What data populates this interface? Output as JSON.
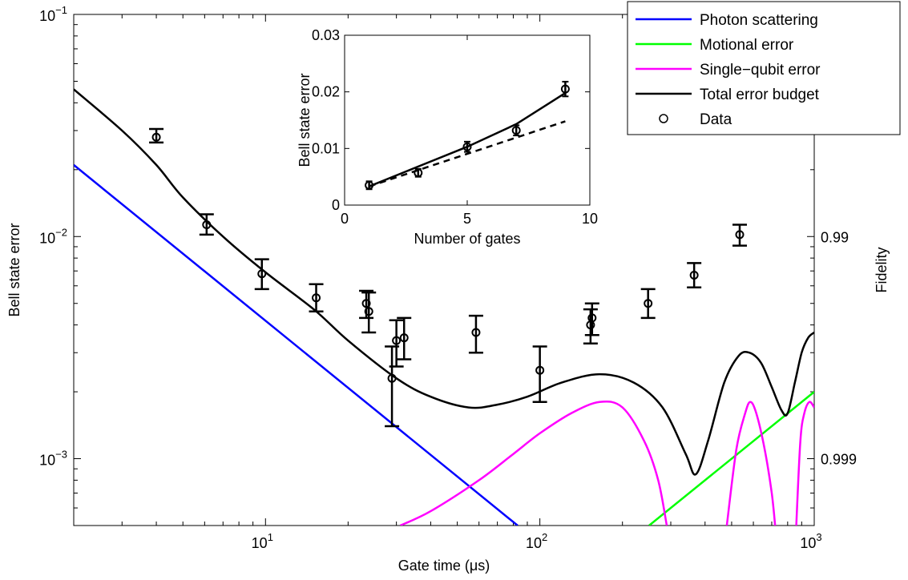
{
  "chart_data": [
    {
      "type": "line",
      "xlabel": "Gate time (μs)",
      "ylabel": "Bell state error",
      "ylabel_right": "Fidelity",
      "xscale": "log",
      "yscale": "log",
      "xlim": [
        2,
        1000
      ],
      "ylim": [
        0.0005,
        0.1
      ],
      "x_ticks": [
        10,
        100,
        1000
      ],
      "x_tick_labels": [
        {
          "base": "10",
          "exp": "1"
        },
        {
          "base": "10",
          "exp": "2"
        },
        {
          "base": "10",
          "exp": "3"
        }
      ],
      "y_ticks": [
        0.001,
        0.01,
        0.1
      ],
      "y_tick_labels": [
        {
          "base": "10",
          "exp": "−3"
        },
        {
          "base": "10",
          "exp": "−2"
        },
        {
          "base": "10",
          "exp": "−1"
        }
      ],
      "right_ticks": [
        {
          "error": 0.01,
          "label": "0.99"
        },
        {
          "error": 0.001,
          "label": "0.999"
        }
      ],
      "legend_position": "top-right",
      "series": [
        {
          "name": "Photon scattering",
          "color": "#0000ff",
          "x": [
            2,
            83
          ],
          "y": [
            0.021,
            0.0005
          ]
        },
        {
          "name": "Motional error",
          "color": "#00ff00",
          "x": [
            250,
            1000
          ],
          "y": [
            0.0005,
            0.002
          ]
        },
        {
          "name": "Single−qubit error",
          "color": "#ff00ff",
          "x": [
            31,
            40,
            60,
            80,
            100,
            130,
            165,
            200,
            240,
            270,
            290,
            1000
          ],
          "y": [
            0.0005,
            0.00058,
            0.0008,
            0.00105,
            0.0013,
            0.0016,
            0.0018,
            0.0017,
            0.0012,
            0.0008,
            0.0005,
            null
          ],
          "x2": [
            480,
            520,
            560,
            585,
            615,
            660,
            700,
            720
          ],
          "y2": [
            0.0005,
            0.0011,
            0.0016,
            0.0018,
            0.0016,
            0.0011,
            0.0007,
            0.0005
          ],
          "x3": [
            860,
            890,
            920,
            960,
            1000
          ],
          "y3": [
            0.0005,
            0.0012,
            0.0016,
            0.0018,
            0.0017
          ]
        },
        {
          "name": "Total error budget",
          "color": "#000000",
          "x": [
            2,
            3,
            4,
            5,
            7,
            10,
            15,
            20,
            30,
            40,
            55,
            70,
            90,
            120,
            165,
            220,
            280,
            340,
            370,
            410,
            470,
            530,
            580,
            640,
            700,
            760,
            800,
            850,
            900,
            950,
            1000
          ],
          "y": [
            0.046,
            0.03,
            0.021,
            0.015,
            0.01,
            0.0069,
            0.0047,
            0.0034,
            0.0023,
            0.0019,
            0.0017,
            0.00175,
            0.0019,
            0.0022,
            0.0024,
            0.0022,
            0.0017,
            0.00105,
            0.00085,
            0.0012,
            0.0022,
            0.0029,
            0.003,
            0.0027,
            0.0021,
            0.00165,
            0.0016,
            0.0022,
            0.003,
            0.0035,
            0.0037
          ]
        },
        {
          "name": "Data",
          "color": "#000000",
          "marker": "circle",
          "points": [
            {
              "x": 4.0,
              "y": 0.028,
              "lo": 0.0265,
              "hi": 0.0305
            },
            {
              "x": 6.1,
              "y": 0.0113,
              "lo": 0.0102,
              "hi": 0.0126
            },
            {
              "x": 9.7,
              "y": 0.0068,
              "lo": 0.0058,
              "hi": 0.0079
            },
            {
              "x": 15.3,
              "y": 0.0053,
              "lo": 0.0046,
              "hi": 0.0061
            },
            {
              "x": 23.3,
              "y": 0.005,
              "lo": 0.0043,
              "hi": 0.0057
            },
            {
              "x": 23.8,
              "y": 0.0046,
              "lo": 0.0037,
              "hi": 0.0056
            },
            {
              "x": 28.9,
              "y": 0.0023,
              "lo": 0.0014,
              "hi": 0.0032
            },
            {
              "x": 30.0,
              "y": 0.0034,
              "lo": 0.0026,
              "hi": 0.0042
            },
            {
              "x": 32.0,
              "y": 0.0035,
              "lo": 0.0028,
              "hi": 0.0043
            },
            {
              "x": 58.5,
              "y": 0.0037,
              "lo": 0.003,
              "hi": 0.0044
            },
            {
              "x": 100.0,
              "y": 0.0025,
              "lo": 0.0018,
              "hi": 0.0032
            },
            {
              "x": 153.0,
              "y": 0.004,
              "lo": 0.0033,
              "hi": 0.0047
            },
            {
              "x": 155.0,
              "y": 0.0043,
              "lo": 0.0036,
              "hi": 0.005
            },
            {
              "x": 248.0,
              "y": 0.005,
              "lo": 0.0043,
              "hi": 0.0058
            },
            {
              "x": 365.0,
              "y": 0.0067,
              "lo": 0.0059,
              "hi": 0.0076
            },
            {
              "x": 535.0,
              "y": 0.0102,
              "lo": 0.0091,
              "hi": 0.0113
            }
          ]
        }
      ]
    },
    {
      "type": "line",
      "inset": true,
      "xlabel": "Number of gates",
      "ylabel": "Bell state error",
      "xlim": [
        0,
        10
      ],
      "ylim": [
        0,
        0.03
      ],
      "x_ticks": [
        0,
        5,
        10
      ],
      "x_tick_labels": [
        "0",
        "5",
        "10"
      ],
      "y_ticks": [
        0,
        0.01,
        0.02,
        0.03
      ],
      "y_tick_labels": [
        "0",
        "0.01",
        "0.02",
        "0.03"
      ],
      "series": [
        {
          "style": "solid",
          "color": "#000000",
          "x": [
            1,
            3,
            5,
            7,
            9
          ],
          "y": [
            0.0033,
            0.0068,
            0.0103,
            0.0143,
            0.0198
          ]
        },
        {
          "style": "dashed",
          "color": "#000000",
          "x": [
            1,
            9
          ],
          "y": [
            0.0033,
            0.0148
          ]
        },
        {
          "marker": "circle",
          "color": "#000000",
          "points": [
            {
              "x": 1,
              "y": 0.0035,
              "lo": 0.0028,
              "hi": 0.0042
            },
            {
              "x": 3,
              "y": 0.0057,
              "lo": 0.005,
              "hi": 0.0064
            },
            {
              "x": 5,
              "y": 0.0103,
              "lo": 0.0094,
              "hi": 0.0112
            },
            {
              "x": 7,
              "y": 0.0132,
              "lo": 0.0123,
              "hi": 0.0141
            },
            {
              "x": 9,
              "y": 0.0205,
              "lo": 0.0192,
              "hi": 0.0218
            }
          ]
        }
      ]
    }
  ]
}
